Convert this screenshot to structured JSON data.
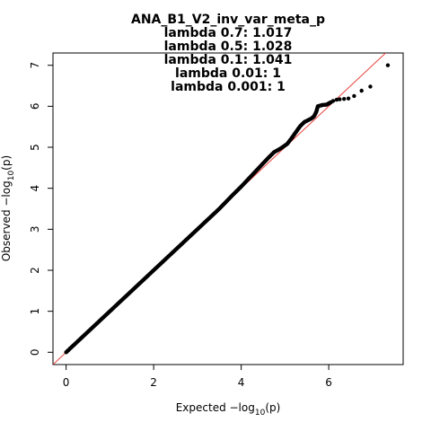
{
  "chart_data": {
    "type": "scatter",
    "title": "ANA_B1_V2_inv_var_meta_p",
    "subtitle_lines": [
      "lambda 0.7: 1.017",
      "lambda 0.5: 1.028",
      "lambda 0.1: 1.041",
      "lambda 0.01: 1",
      "lambda 0.001: 1"
    ],
    "xlabel": {
      "prefix": "Expected  −log",
      "sub": "10",
      "suffix": "(p)"
    },
    "ylabel": {
      "prefix": "Observed  −log",
      "sub": "10",
      "suffix": "(p)"
    },
    "xlim": [
      -0.3,
      7.7
    ],
    "ylim": [
      -0.3,
      7.3
    ],
    "x_ticks": [
      0,
      2,
      4,
      6
    ],
    "y_ticks": [
      0,
      1,
      2,
      3,
      4,
      5,
      6,
      7
    ],
    "reference_line": {
      "slope": 1,
      "intercept": 0,
      "color": "#e8413a"
    },
    "point_color": "#000000",
    "series": [
      {
        "values": [
          [
            0.0,
            0.0
          ],
          [
            0.2,
            0.2
          ],
          [
            0.5,
            0.5
          ],
          [
            1.0,
            1.0
          ],
          [
            1.5,
            1.5
          ],
          [
            2.0,
            2.0
          ],
          [
            2.5,
            2.5
          ],
          [
            3.0,
            3.0
          ],
          [
            3.5,
            3.5
          ],
          [
            3.8,
            3.83
          ],
          [
            4.0,
            4.04
          ],
          [
            4.3,
            4.38
          ],
          [
            4.6,
            4.72
          ],
          [
            4.75,
            4.88
          ],
          [
            4.9,
            4.97
          ],
          [
            5.05,
            5.08
          ],
          [
            5.15,
            5.22
          ],
          [
            5.25,
            5.37
          ],
          [
            5.35,
            5.52
          ],
          [
            5.45,
            5.62
          ],
          [
            5.6,
            5.7
          ],
          [
            5.66,
            5.75
          ],
          [
            5.7,
            5.83
          ],
          [
            5.72,
            5.88
          ],
          [
            5.75,
            6.0
          ],
          [
            5.85,
            6.03
          ],
          [
            5.95,
            6.04
          ],
          [
            6.0,
            6.07
          ],
          [
            6.05,
            6.1
          ],
          [
            6.1,
            6.13
          ],
          [
            6.18,
            6.16
          ],
          [
            6.25,
            6.17
          ],
          [
            6.35,
            6.18
          ],
          [
            6.45,
            6.19
          ],
          [
            6.58,
            6.25
          ],
          [
            6.75,
            6.38
          ],
          [
            6.95,
            6.48
          ],
          [
            7.35,
            7.0
          ]
        ]
      }
    ]
  }
}
